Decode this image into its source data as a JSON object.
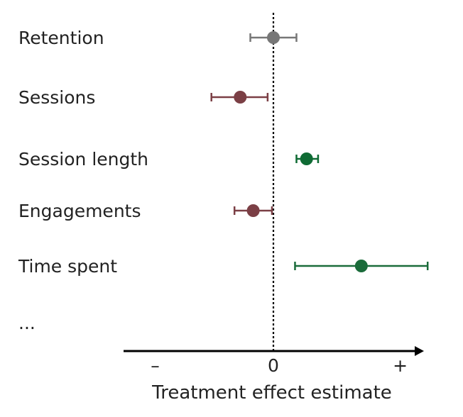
{
  "chart_data": {
    "type": "forest-plot",
    "title": "",
    "xlabel": "Treatment effect estimate",
    "ylabel": "",
    "xlim": [
      -1,
      1
    ],
    "x_ticks": [
      {
        "value": -0.82,
        "label": "–"
      },
      {
        "value": 0,
        "label": "0"
      },
      {
        "value": 0.88,
        "label": "+"
      }
    ],
    "reference_line": {
      "value": 0,
      "style": "dotted"
    },
    "rows": [
      {
        "label": "Retention",
        "estimate": 0.0,
        "ci": [
          -0.16,
          0.16
        ],
        "color": "#777777"
      },
      {
        "label": "Sessions",
        "estimate": -0.23,
        "ci": [
          -0.43,
          -0.04
        ],
        "color": "#7b3f45"
      },
      {
        "label": "Session length",
        "estimate": 0.23,
        "ci": [
          0.16,
          0.31
        ],
        "color": "#0f6b34"
      },
      {
        "label": "Engagements",
        "estimate": -0.14,
        "ci": [
          -0.27,
          -0.01
        ],
        "color": "#7b3f45"
      },
      {
        "label": "Time spent",
        "estimate": 0.61,
        "ci": [
          0.15,
          1.07
        ],
        "color": "#1a6b3a"
      },
      {
        "label": "...",
        "estimate": null,
        "ci": null,
        "color": "#222222"
      }
    ]
  }
}
